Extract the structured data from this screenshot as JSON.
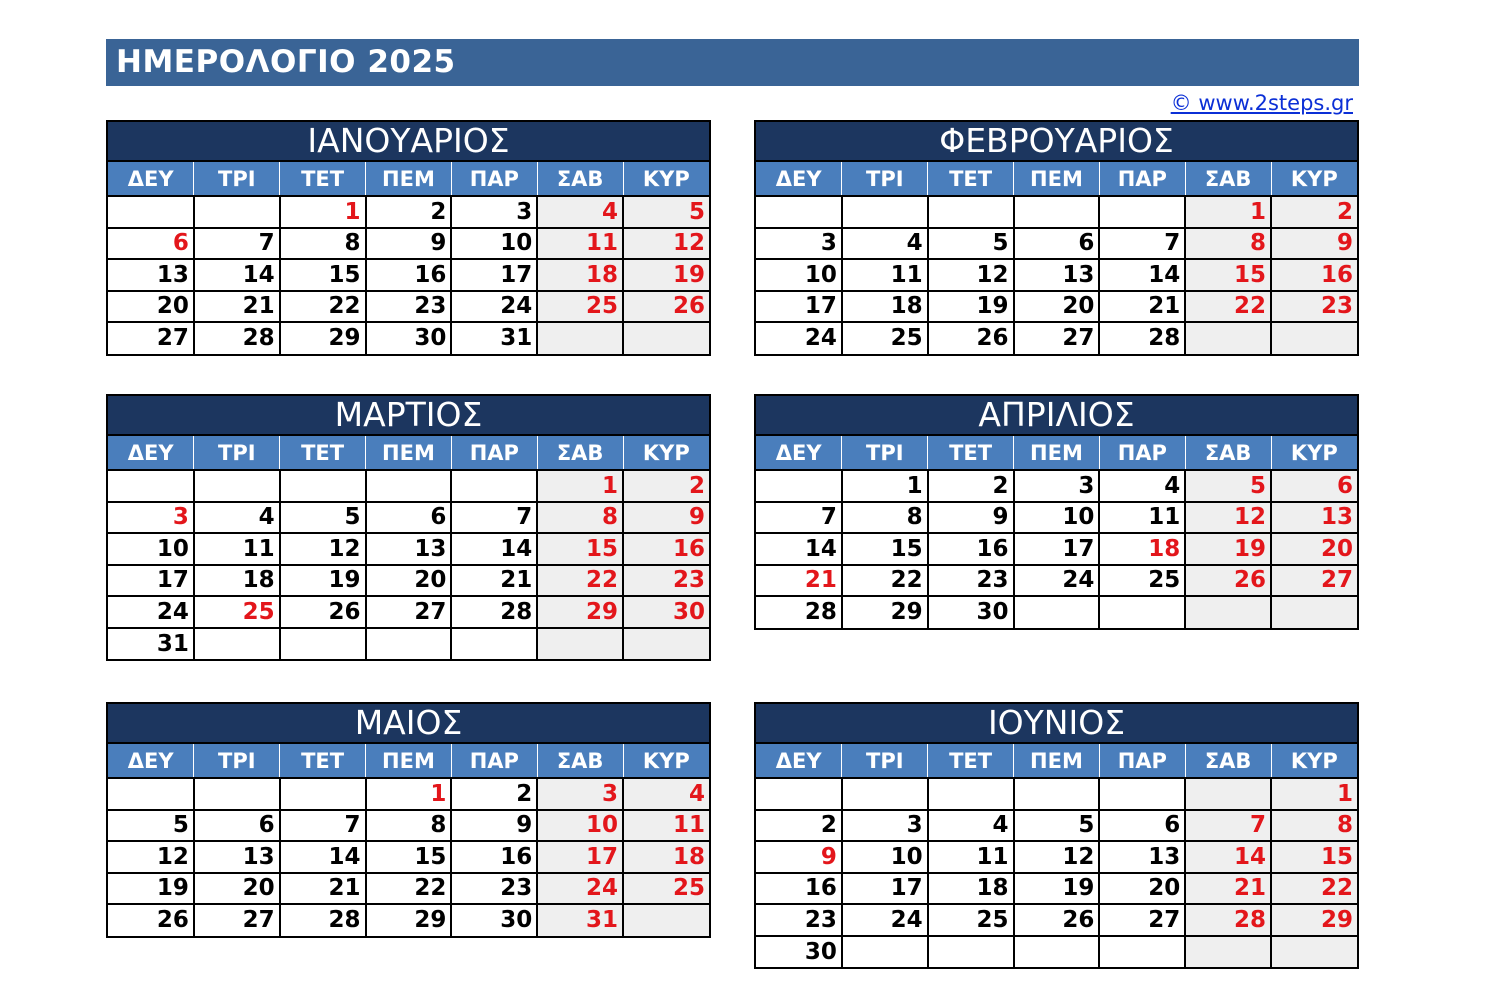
{
  "title": "ΗΜΕΡΟΛΟΓΙΟ 2025",
  "copyright": "© www.2steps.gr",
  "weekdays": [
    "ΔΕΥ",
    "ΤΡΙ",
    "ΤΕΤ",
    "ΠΕΜ",
    "ΠΑΡ",
    "ΣΑΒ",
    "ΚΥΡ"
  ],
  "colors": {
    "title_bg": "#3a6496",
    "month_bg": "#1c365f",
    "weekday_bg": "#4a7ebc",
    "holiday_red": "#e3161b",
    "weekend_bg": "#efefef",
    "link": "#0b2fd6"
  },
  "months": [
    {
      "name": "ΙΑΝΟΥΑΡΙΟΣ",
      "offset": 2,
      "days": 31,
      "holidays": [
        1,
        6
      ]
    },
    {
      "name": "ΦΕΒΡΟΥΑΡΙΟΣ",
      "offset": 5,
      "days": 28,
      "holidays": []
    },
    {
      "name": "ΜΑΡΤΙΟΣ",
      "offset": 5,
      "days": 31,
      "holidays": [
        3,
        25
      ]
    },
    {
      "name": "ΑΠΡΙΛΙΟΣ",
      "offset": 1,
      "days": 30,
      "holidays": [
        18,
        21
      ]
    },
    {
      "name": "ΜΑΙΟΣ",
      "offset": 3,
      "days": 31,
      "holidays": [
        1
      ]
    },
    {
      "name": "ΙΟΥΝΙΟΣ",
      "offset": 6,
      "days": 30,
      "holidays": [
        9
      ]
    }
  ]
}
